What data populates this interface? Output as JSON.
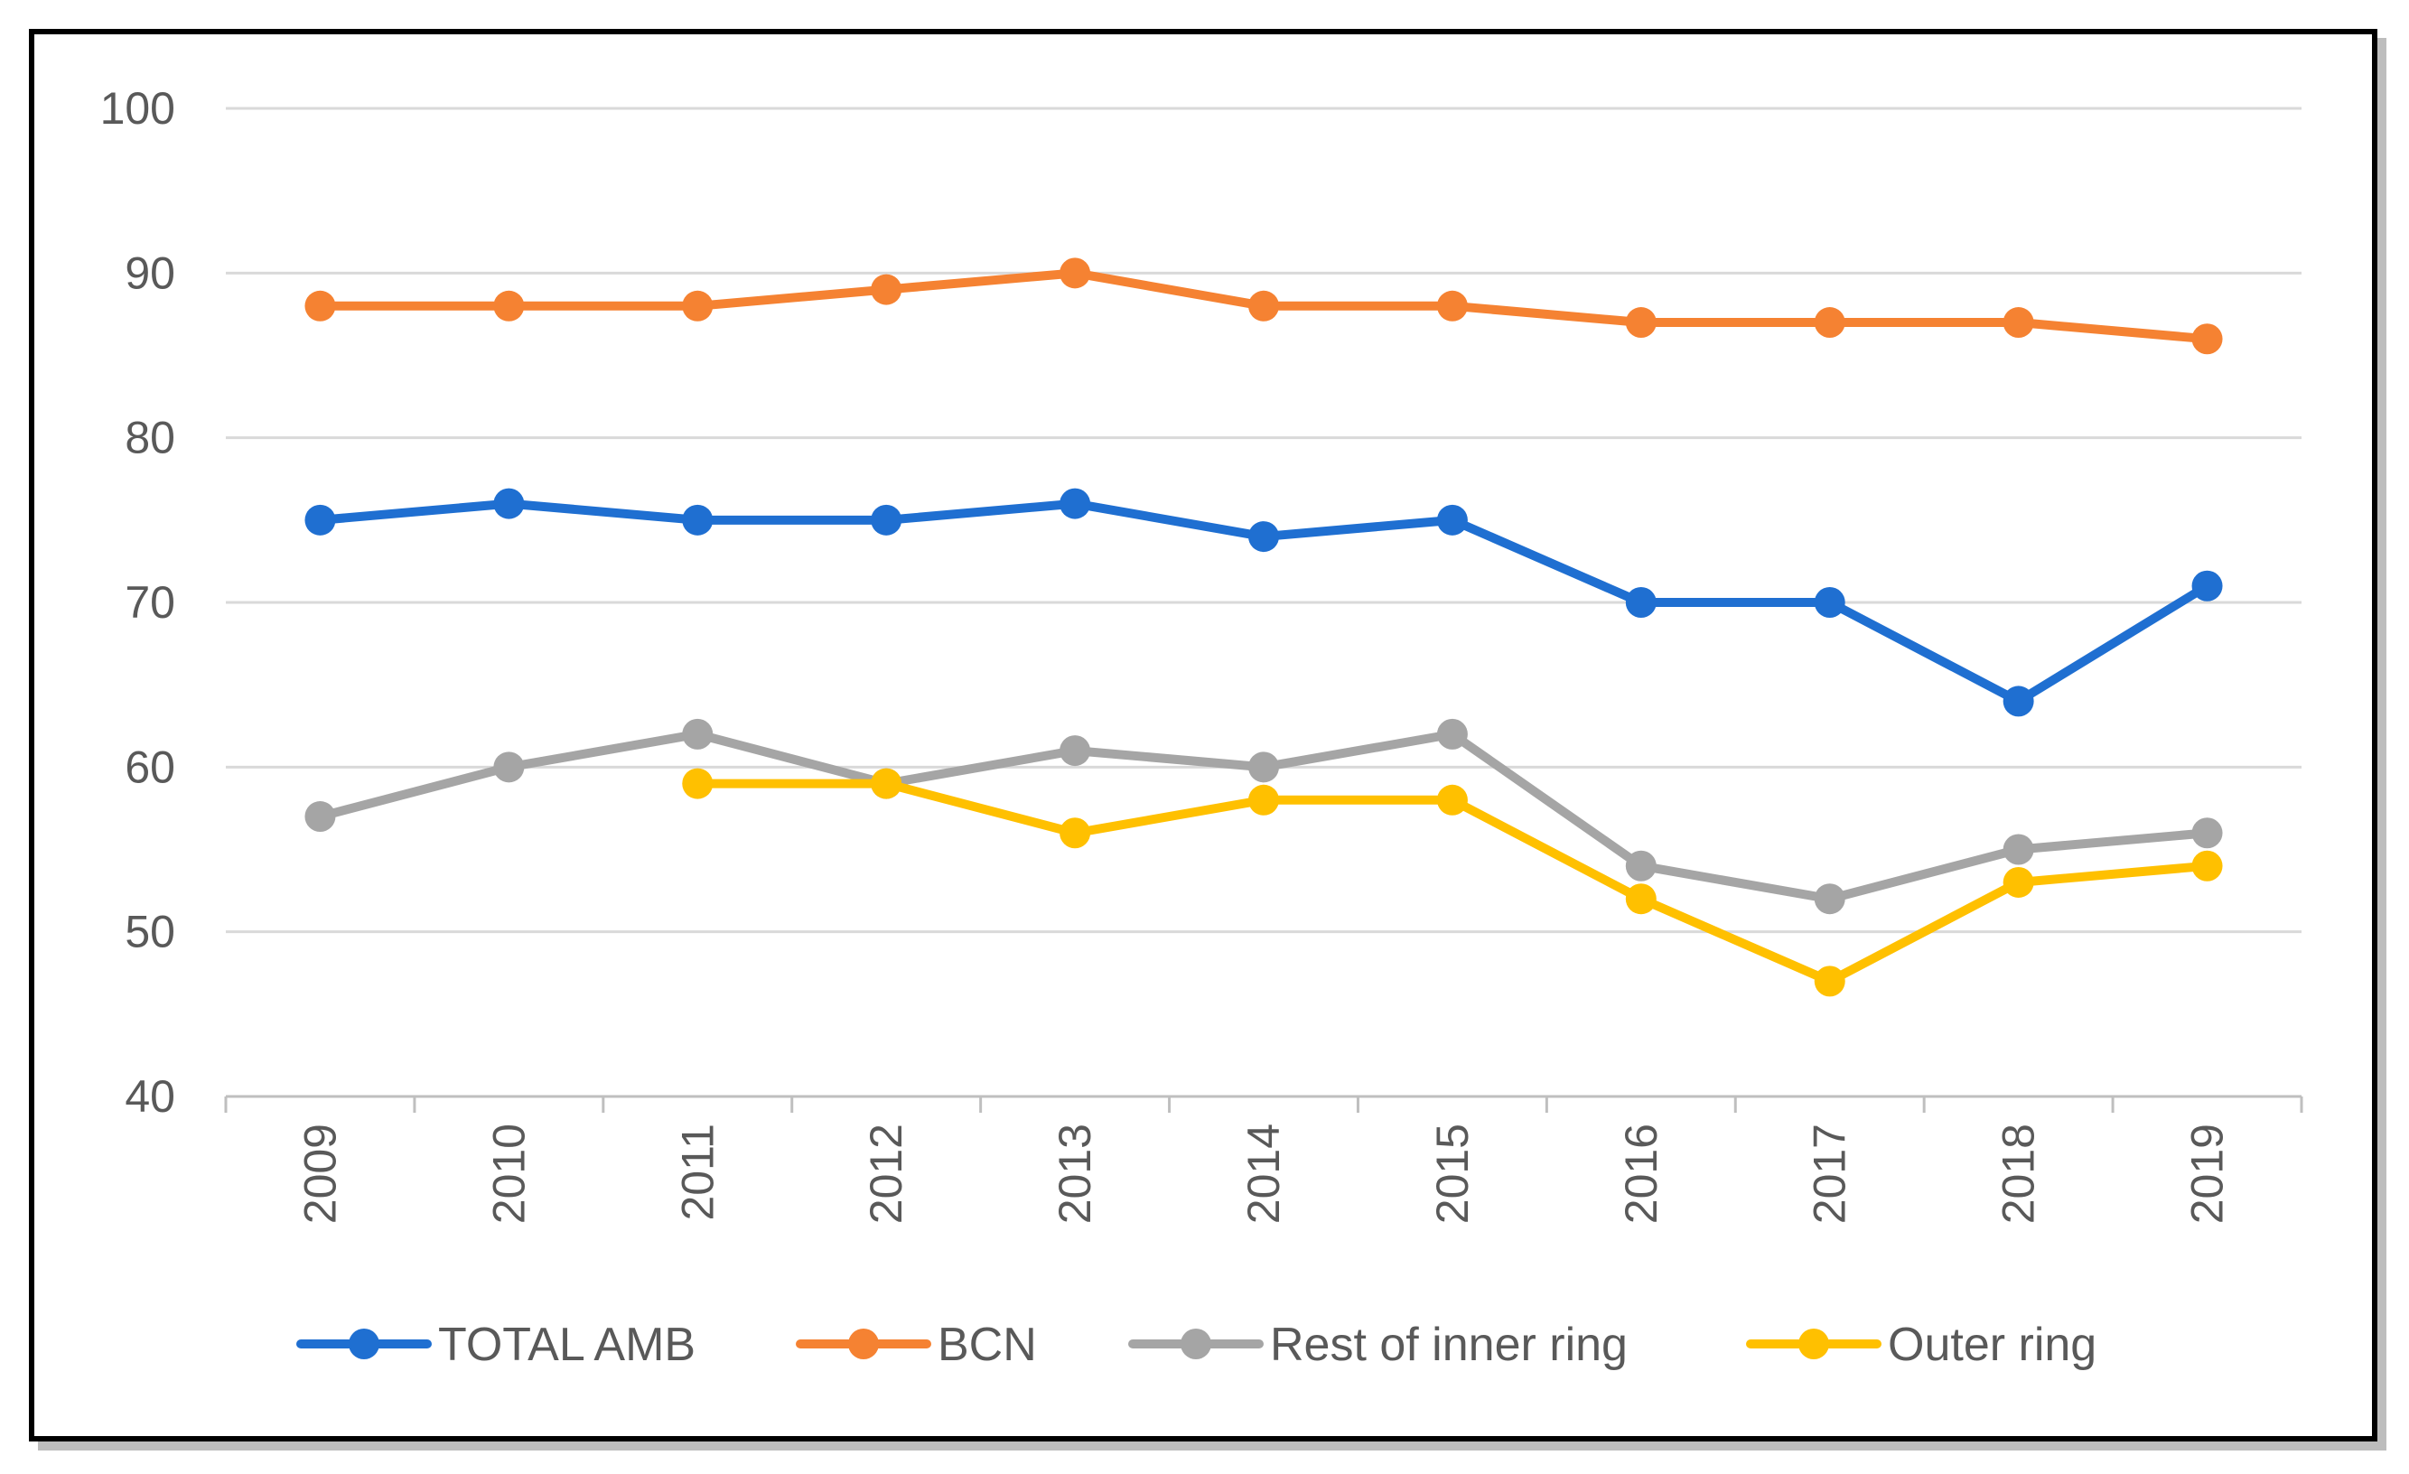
{
  "chart_data": {
    "type": "line",
    "title": "",
    "xlabel": "",
    "ylabel": "",
    "categories": [
      "2009",
      "2010",
      "2011",
      "2012",
      "2013",
      "2014",
      "2015",
      "2016",
      "2017",
      "2018",
      "2019"
    ],
    "ylim": [
      40,
      100
    ],
    "yticks": [
      40,
      50,
      60,
      70,
      80,
      90,
      100
    ],
    "grid": true,
    "legend_position": "bottom",
    "series": [
      {
        "name": "TOTAL AMB",
        "color": "#1f6fd1",
        "values": [
          75,
          76,
          75,
          75,
          76,
          74,
          75,
          70,
          70,
          64,
          71
        ]
      },
      {
        "name": "BCN",
        "color": "#f58232",
        "values": [
          88,
          88,
          88,
          89,
          90,
          88,
          88,
          87,
          87,
          87,
          86
        ]
      },
      {
        "name": "Rest of inner ring",
        "color": "#a5a5a5",
        "values": [
          57,
          60,
          62,
          59,
          61,
          60,
          62,
          54,
          52,
          55,
          56
        ]
      },
      {
        "name": "Outer ring",
        "color": "#ffc000",
        "values": [
          null,
          null,
          59,
          59,
          56,
          58,
          58,
          52,
          47,
          53,
          54
        ]
      }
    ]
  }
}
